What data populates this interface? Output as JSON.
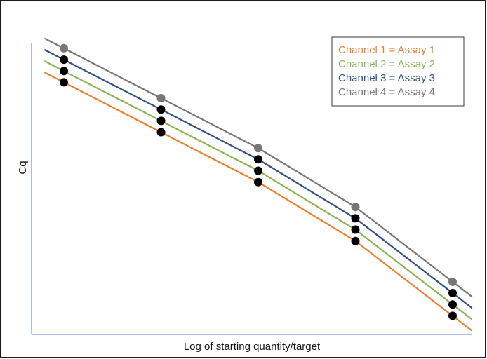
{
  "chart_data": {
    "type": "line",
    "title": "",
    "xlabel": "Log of starting quantity/target",
    "ylabel": "Cq",
    "x": [
      1,
      2,
      3,
      4,
      5
    ],
    "grid": false,
    "legend_position": "top-right",
    "series": [
      {
        "name": "Channel 1 = Assay 1",
        "color": "#ed7d31",
        "marker": "#000000",
        "values": [
          5.5,
          4.4,
          3.3,
          2.0,
          0.35
        ]
      },
      {
        "name": "Channel 2 = Assay 2",
        "color": "#8db255",
        "marker": "#000000",
        "values": [
          5.75,
          4.65,
          3.55,
          2.25,
          0.6
        ]
      },
      {
        "name": "Channel 3 = Assay 3",
        "color": "#2f4f8a",
        "marker": "#000000",
        "values": [
          6.0,
          4.9,
          3.8,
          2.5,
          0.85
        ]
      },
      {
        "name": "Channel 4 = Assay 4",
        "color": "#767676",
        "marker": "#767676",
        "values": [
          6.25,
          5.15,
          4.05,
          2.75,
          1.1
        ]
      }
    ]
  }
}
